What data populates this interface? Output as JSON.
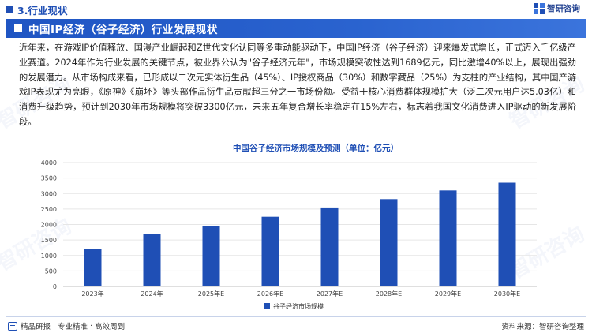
{
  "header": {
    "section_label": "3.行业现状",
    "logo_text": "智研咨询"
  },
  "banner": {
    "title": "中国IP经济（谷子经济）行业发展现状"
  },
  "body": {
    "paragraph": "近年来，在游戏IP价值释放、国漫产业崛起和Z世代文化认同等多重动能驱动下，中国IP经济（谷子经济）迎来爆发式增长，正式迈入千亿级产业赛道。2024年作为行业发展的关键节点，被业界公认为\"谷子经济元年\"，市场规模突破性达到1689亿元，同比激增40%以上，展现出强劲的发展潜力。从市场构成来看，已形成以二次元实体衍生品（45%）、IP授权商品（30%）和数字藏品（25%）为支柱的产业结构，其中国产游戏IP表现尤为亮眼，《原神》《崩坏》等头部作品衍生品贡献超三分之一市场份额。受益于核心消费群体规模扩大（泛二次元用户达5.03亿）和消费升级趋势，预计到2030年市场规模将突破3300亿元，未来五年复合增长率稳定在15%左右，标志着我国文化消费进入IP驱动的新发展阶段。"
  },
  "chart_data": {
    "type": "bar",
    "title": "中国谷子经济市场规模及预测（单位：亿元）",
    "categories": [
      "2023年",
      "2024年",
      "2025年E",
      "2026年E",
      "2027年E",
      "2028年E",
      "2029年E",
      "2030年E"
    ],
    "series": [
      {
        "name": "谷子经济市场规模",
        "values": [
          1200,
          1689,
          1950,
          2250,
          2550,
          2820,
          3100,
          3350
        ]
      }
    ],
    "ylim": [
      0,
      4000
    ],
    "yticks": [
      0,
      500,
      1000,
      1500,
      2000,
      2500,
      3000,
      3500,
      4000
    ],
    "grid": true,
    "legend": "bottom",
    "bar_color": "#1f4fb5"
  },
  "footer": {
    "left_items": [
      "精品研报",
      "专业精准",
      "高效周到"
    ],
    "source": "资料来源：智研咨询整理"
  }
}
